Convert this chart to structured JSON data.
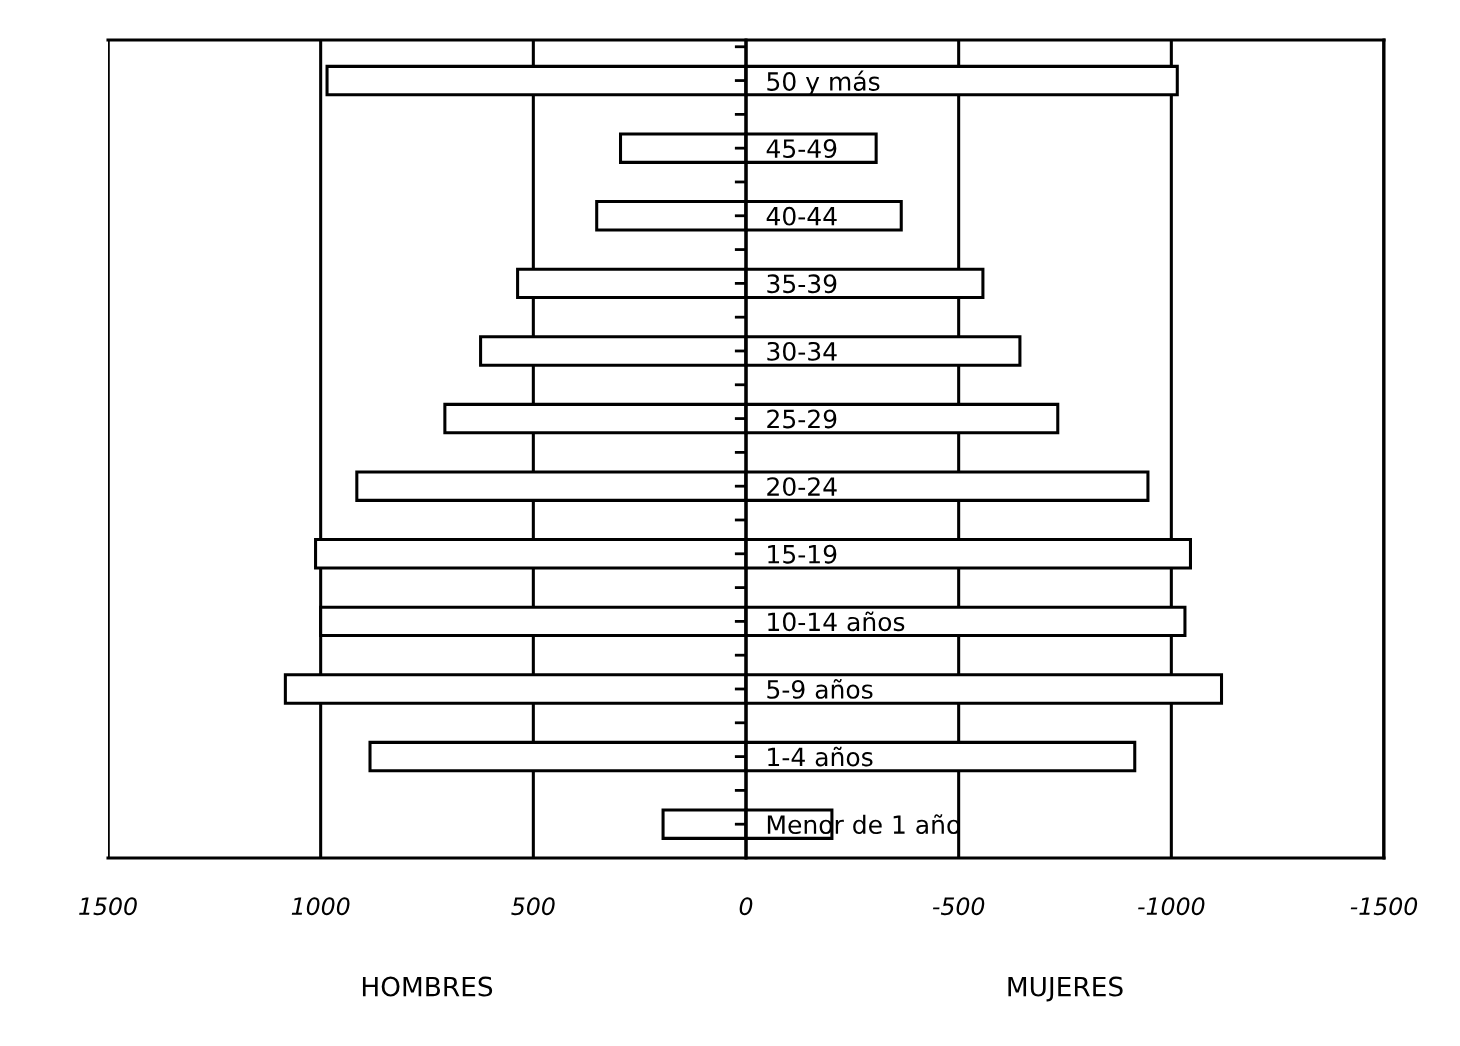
{
  "chart_data": {
    "type": "bar",
    "orientation": "horizontal",
    "categories": [
      "50 y más",
      "45-49",
      "40-44",
      "35-39",
      "30-34",
      "25-29",
      "20-24",
      "15-19",
      "10-14 años",
      "5-9 años",
      "1-4 años",
      "Menor de 1 año"
    ],
    "series": [
      {
        "color": "#ffffff",
        "values": [
          985,
          295,
          351,
          537,
          624,
          708,
          915,
          1012,
          1000,
          1083,
          884,
          195
        ]
      },
      {
        "color": "#ffffff",
        "values": [
          -1014,
          -306,
          -365,
          -557,
          -644,
          -733,
          -945,
          -1045,
          -1032,
          -1118,
          -914,
          -202
        ]
      }
    ],
    "xlim": [
      1500,
      -1500
    ],
    "xticks": [
      1500,
      1000,
      500,
      0,
      -500,
      -1000,
      -1500
    ],
    "stacked": true,
    "grid": "x",
    "legend": false,
    "annotations": [
      "HOMBRES",
      "MUJERES"
    ]
  }
}
